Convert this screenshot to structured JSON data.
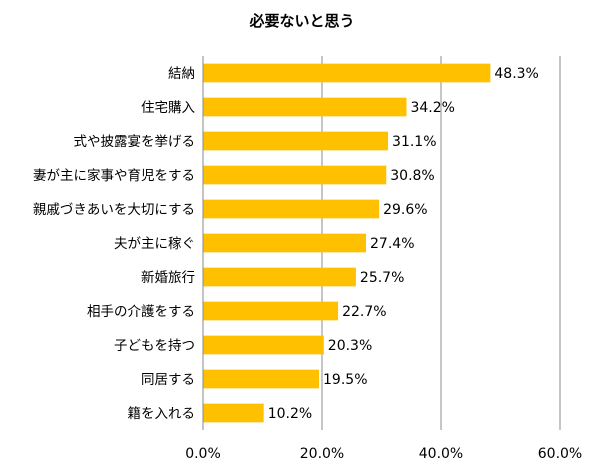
{
  "chart_data": {
    "type": "bar",
    "orientation": "horizontal",
    "title": "必要ないと思う",
    "categories": [
      "結納",
      "住宅購入",
      "式や披露宴を挙げる",
      "妻が主に家事や育児をする",
      "親戚づきあいを大切にする",
      "夫が主に稼ぐ",
      "新婚旅行",
      "相手の介護をする",
      "子どもを持つ",
      "同居する",
      "籍を入れる"
    ],
    "values": [
      48.3,
      34.2,
      31.1,
      30.8,
      29.6,
      27.4,
      25.7,
      22.7,
      20.3,
      19.5,
      10.2
    ],
    "value_labels": [
      "48.3%",
      "34.2%",
      "31.1%",
      "30.8%",
      "29.6%",
      "27.4%",
      "25.7%",
      "22.7%",
      "20.3%",
      "19.5%",
      "10.2%"
    ],
    "xlim": [
      0,
      60
    ],
    "xticks": [
      0,
      20,
      40,
      60
    ],
    "xtick_labels": [
      "0.0%",
      "20.0%",
      "40.0%",
      "60.0%"
    ],
    "xlabel": "",
    "ylabel": "",
    "grid": "vertical",
    "legend": "none",
    "bar_color": "#FFC000"
  }
}
